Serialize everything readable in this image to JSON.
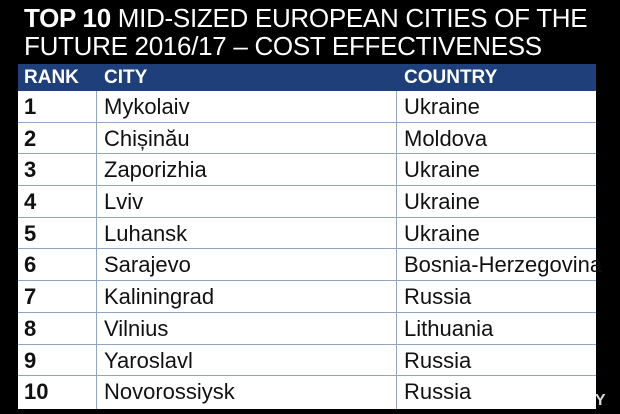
{
  "title": {
    "bold_part": "TOP 10",
    "rest_line1": "MID-SIZED EUROPEAN CITIES OF THE",
    "line2": "FUTURE 2016/17 – COST EFFECTIVENESS"
  },
  "table": {
    "headers": {
      "rank": "RANK",
      "city": "CITY",
      "country": "COUNTRY"
    },
    "rows": [
      {
        "rank": "1",
        "city": "Mykolaiv",
        "country": "Ukraine"
      },
      {
        "rank": "2",
        "city": "Chișinău",
        "country": "Moldova"
      },
      {
        "rank": "3",
        "city": "Zaporizhia",
        "country": "Ukraine"
      },
      {
        "rank": "4",
        "city": "Lviv",
        "country": "Ukraine"
      },
      {
        "rank": "5",
        "city": "Luhansk",
        "country": "Ukraine"
      },
      {
        "rank": "6",
        "city": "Sarajevo",
        "country": "Bosnia-Herzegovina"
      },
      {
        "rank": "7",
        "city": "Kaliningrad",
        "country": "Russia"
      },
      {
        "rank": "8",
        "city": "Vilnius",
        "country": "Lithuania"
      },
      {
        "rank": "9",
        "city": "Yaroslavl",
        "country": "Russia"
      },
      {
        "rank": "10",
        "city": "Novorossiysk",
        "country": "Russia"
      }
    ]
  },
  "watermark": "TUT.BY",
  "colors": {
    "background": "#000000",
    "header": "#1f3f7a",
    "grid": "#8fa6c8"
  }
}
